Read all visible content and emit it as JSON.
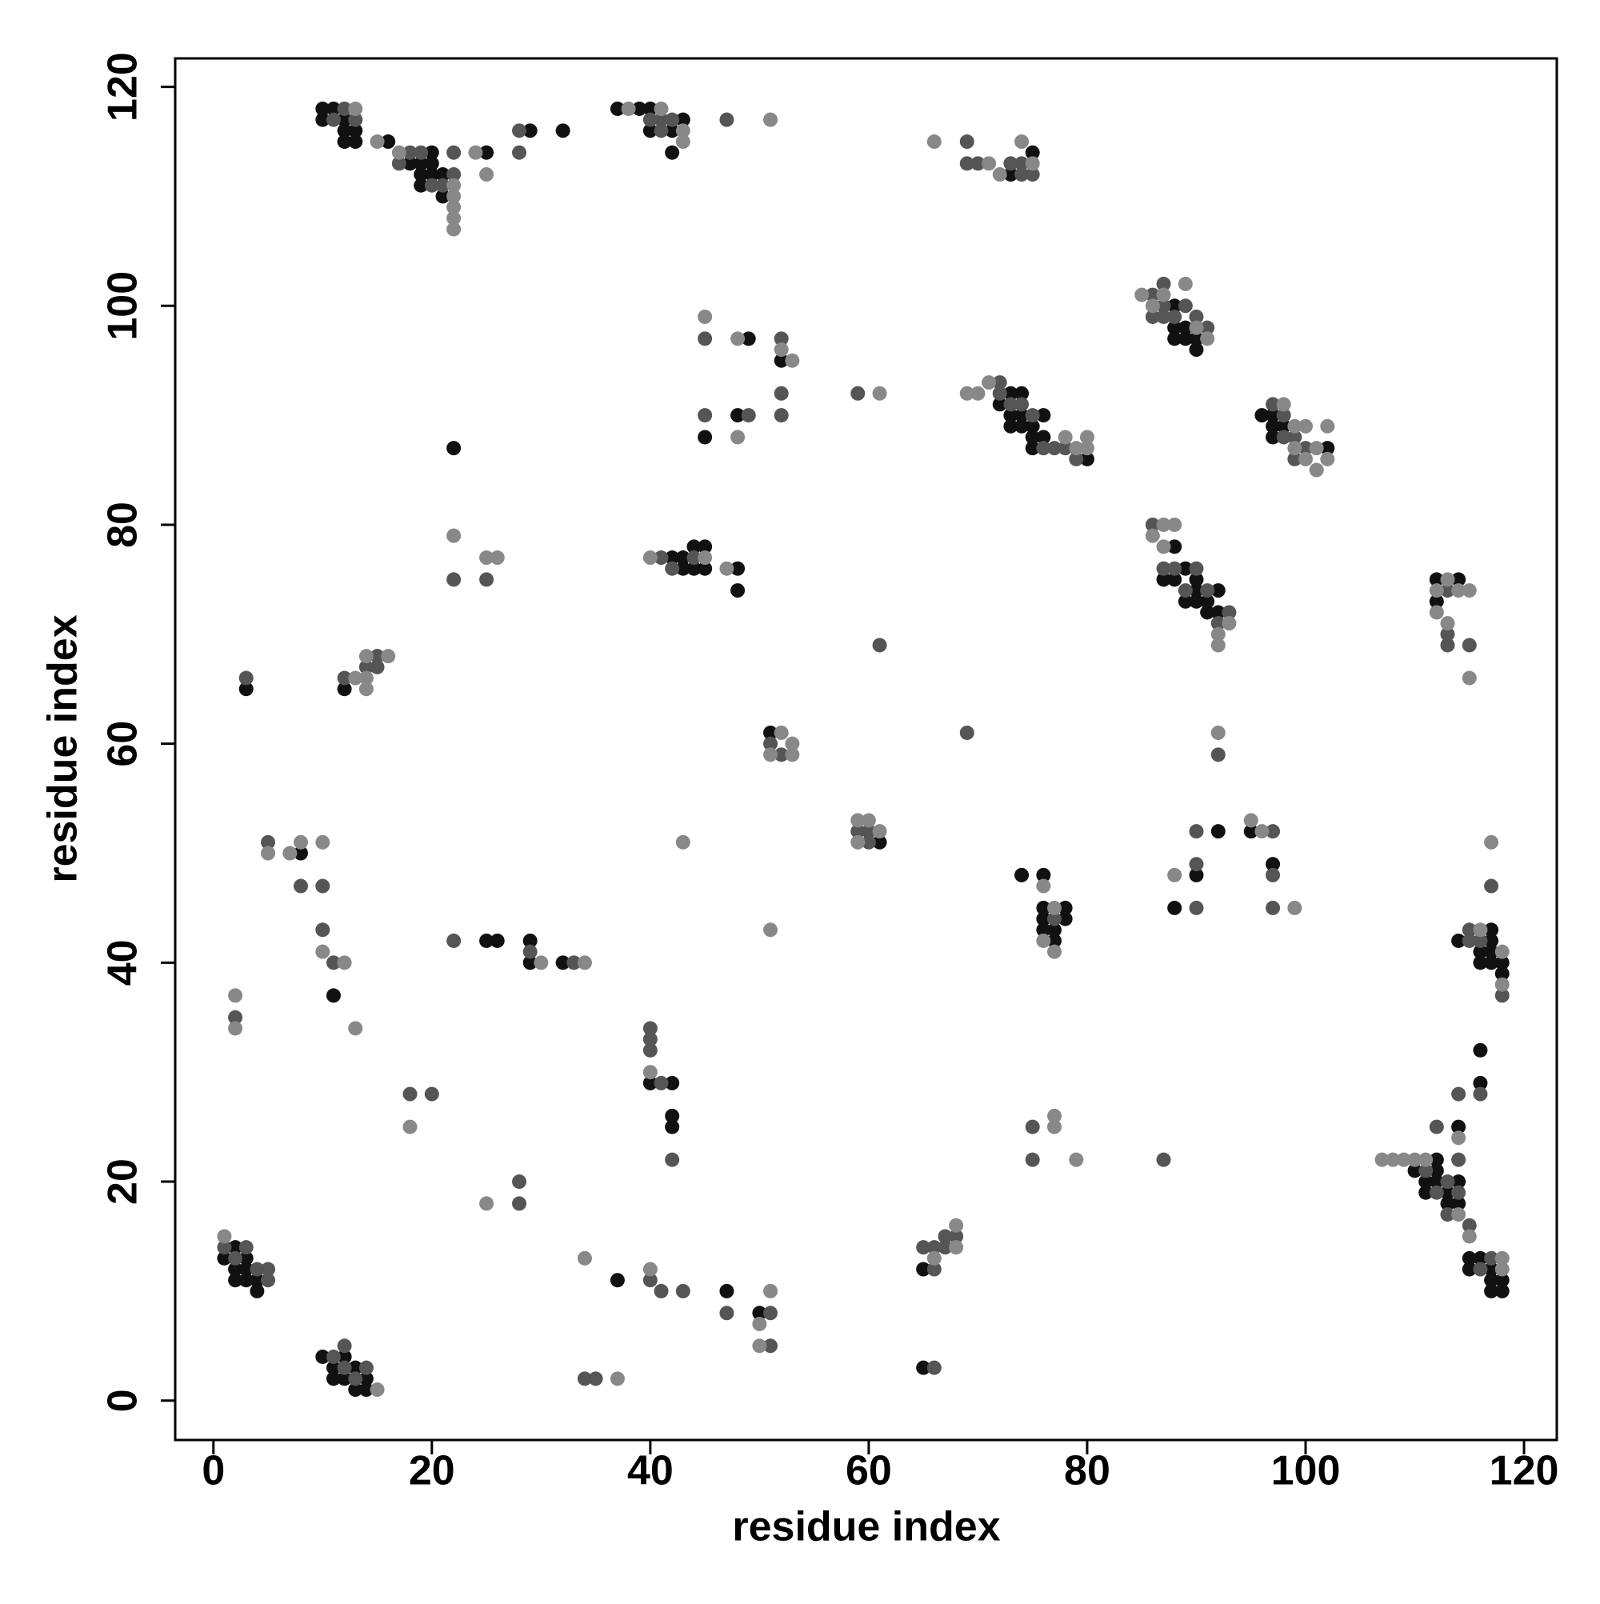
{
  "chart_data": {
    "type": "scatter",
    "xlabel": "residue index",
    "ylabel": "residue index",
    "xlim": [
      -3.5,
      123
    ],
    "ylim": [
      -3.6,
      122.6
    ],
    "xticks": [
      0,
      20,
      40,
      60,
      80,
      100,
      120
    ],
    "yticks": [
      0,
      20,
      40,
      60,
      80,
      100,
      120
    ],
    "series": [
      {
        "color": "#111111",
        "x": [
          1,
          2,
          2,
          2,
          3,
          3,
          3,
          4,
          4,
          10,
          11,
          11,
          12,
          12,
          13,
          13,
          14,
          14,
          37,
          47,
          50,
          65,
          65,
          3,
          8,
          11,
          12,
          25,
          26,
          29,
          29,
          32,
          22,
          40,
          42,
          42,
          42,
          42,
          43,
          43,
          44,
          44,
          45,
          45,
          48,
          48,
          49,
          45,
          48,
          52,
          51,
          61,
          10,
          10,
          11,
          12,
          12,
          12,
          13,
          13,
          16,
          18,
          19,
          19,
          19,
          20,
          20,
          20,
          21,
          21,
          25,
          29,
          32,
          37,
          39,
          40,
          40,
          42,
          42,
          43,
          73,
          75,
          72,
          73,
          73,
          73,
          74,
          74,
          74,
          75,
          75,
          75,
          76,
          76,
          80,
          88,
          88,
          88,
          89,
          89,
          90,
          90,
          96,
          97,
          97,
          97,
          98,
          102,
          87,
          88,
          88,
          89,
          89,
          90,
          90,
          90,
          91,
          91,
          92,
          92,
          112,
          112,
          114,
          74,
          76,
          76,
          76,
          76,
          77,
          77,
          78,
          78,
          88,
          90,
          92,
          95,
          97,
          114,
          116,
          116,
          117,
          117,
          117,
          117,
          118,
          118,
          116,
          116,
          114,
          110,
          111,
          111,
          112,
          112,
          112,
          113,
          113,
          114,
          114,
          115,
          115,
          116,
          117,
          117,
          117,
          118,
          118
        ],
        "values": [
          13,
          14,
          12,
          11,
          13,
          12,
          11,
          11,
          10,
          4,
          3,
          2,
          4,
          2,
          3,
          1,
          2,
          1,
          11,
          10,
          8,
          3,
          12,
          65,
          50,
          37,
          65,
          42,
          42,
          42,
          40,
          40,
          87,
          29,
          29,
          26,
          25,
          77,
          77,
          76,
          78,
          76,
          78,
          76,
          76,
          74,
          97,
          88,
          90,
          95,
          61,
          51,
          118,
          117,
          118,
          117,
          116,
          115,
          116,
          115,
          115,
          113,
          113,
          112,
          111,
          114,
          113,
          112,
          112,
          110,
          114,
          116,
          116,
          118,
          118,
          118,
          116,
          116,
          114,
          117,
          112,
          114,
          91,
          92,
          90,
          89,
          92,
          90,
          89,
          89,
          88,
          87,
          90,
          88,
          86,
          100,
          98,
          97,
          98,
          97,
          97,
          96,
          90,
          90,
          89,
          88,
          89,
          87,
          75,
          78,
          75,
          76,
          73,
          75,
          74,
          73,
          73,
          72,
          74,
          72,
          75,
          73,
          75,
          48,
          48,
          45,
          44,
          43,
          43,
          42,
          45,
          44,
          45,
          48,
          52,
          52,
          49,
          42,
          41,
          40,
          43,
          42,
          41,
          40,
          40,
          39,
          32,
          29,
          25,
          21,
          20,
          19,
          22,
          21,
          20,
          19,
          18,
          20,
          18,
          13,
          12,
          13,
          12,
          11,
          10,
          11,
          10
        ]
      },
      {
        "color": "#555555",
        "x": [
          1,
          2,
          3,
          4,
          5,
          5,
          11,
          12,
          12,
          13,
          14,
          34,
          35,
          40,
          41,
          43,
          47,
          51,
          51,
          66,
          66,
          65,
          66,
          67,
          67,
          68,
          18,
          20,
          28,
          28,
          2,
          3,
          5,
          8,
          10,
          10,
          11,
          12,
          14,
          15,
          15,
          22,
          29,
          33,
          22,
          25,
          40,
          40,
          40,
          41,
          42,
          41,
          42,
          44,
          45,
          45,
          49,
          52,
          52,
          52,
          51,
          52,
          59,
          60,
          60,
          61,
          59,
          69,
          11,
          12,
          13,
          17,
          18,
          19,
          20,
          21,
          22,
          22,
          28,
          28,
          40,
          41,
          41,
          42,
          47,
          69,
          69,
          70,
          73,
          74,
          74,
          75,
          72,
          72,
          73,
          74,
          75,
          76,
          77,
          78,
          79,
          86,
          86,
          87,
          87,
          87,
          88,
          89,
          90,
          91,
          97,
          98,
          98,
          99,
          99,
          100,
          86,
          87,
          88,
          89,
          90,
          91,
          92,
          93,
          92,
          113,
          113,
          113,
          115,
          77,
          75,
          75,
          87,
          90,
          90,
          90,
          97,
          97,
          97,
          117,
          115,
          115,
          116,
          118,
          116,
          114,
          114,
          112,
          111,
          112,
          113,
          113,
          114,
          115,
          116,
          117
        ],
        "values": [
          14,
          13,
          14,
          12,
          12,
          11,
          4,
          5,
          3,
          2,
          3,
          2,
          2,
          11,
          10,
          10,
          8,
          8,
          5,
          3,
          12,
          14,
          14,
          15,
          14,
          15,
          28,
          28,
          20,
          18,
          35,
          66,
          51,
          47,
          47,
          43,
          40,
          66,
          67,
          68,
          67,
          42,
          41,
          40,
          75,
          75,
          34,
          33,
          32,
          29,
          22,
          77,
          76,
          77,
          97,
          90,
          90,
          97,
          92,
          90,
          60,
          59,
          52,
          52,
          51,
          69,
          92,
          61,
          117,
          118,
          117,
          113,
          114,
          114,
          111,
          111,
          114,
          112,
          116,
          114,
          117,
          117,
          116,
          117,
          117,
          115,
          113,
          113,
          113,
          113,
          112,
          112,
          93,
          92,
          91,
          91,
          90,
          87,
          87,
          87,
          86,
          101,
          99,
          102,
          100,
          99,
          99,
          100,
          99,
          98,
          91,
          90,
          88,
          88,
          86,
          87,
          80,
          76,
          76,
          74,
          76,
          74,
          71,
          72,
          59,
          74,
          70,
          69,
          69,
          44,
          25,
          22,
          22,
          52,
          49,
          45,
          52,
          48,
          45,
          47,
          43,
          42,
          42,
          37,
          28,
          28,
          22,
          25,
          21,
          19,
          20,
          17,
          19,
          16,
          12,
          13
        ]
      },
      {
        "color": "#888888",
        "x": [
          1,
          15,
          37,
          34,
          40,
          50,
          50,
          51,
          66,
          68,
          68,
          18,
          25,
          2,
          2,
          5,
          7,
          8,
          10,
          10,
          12,
          13,
          13,
          14,
          14,
          14,
          16,
          30,
          34,
          22,
          25,
          26,
          40,
          43,
          40,
          45,
          47,
          45,
          48,
          48,
          52,
          53,
          51,
          52,
          53,
          53,
          51,
          59,
          59,
          60,
          61,
          61,
          13,
          15,
          17,
          22,
          22,
          22,
          22,
          22,
          24,
          25,
          38,
          41,
          43,
          43,
          51,
          66,
          71,
          72,
          74,
          75,
          69,
          70,
          71,
          78,
          79,
          80,
          80,
          85,
          86,
          87,
          89,
          90,
          91,
          98,
          99,
          99,
          100,
          100,
          101,
          101,
          102,
          102,
          86,
          87,
          87,
          88,
          92,
          92,
          93,
          92,
          112,
          112,
          113,
          113,
          114,
          115,
          115,
          76,
          76,
          77,
          77,
          77,
          77,
          79,
          88,
          95,
          96,
          99,
          117,
          116,
          118,
          118,
          114,
          107,
          108,
          109,
          110,
          111,
          114,
          115,
          118,
          118
        ],
        "values": [
          15,
          1,
          2,
          13,
          12,
          7,
          5,
          10,
          13,
          16,
          14,
          25,
          18,
          37,
          34,
          50,
          50,
          51,
          51,
          41,
          40,
          34,
          66,
          66,
          65,
          68,
          68,
          40,
          40,
          79,
          77,
          77,
          30,
          51,
          77,
          77,
          76,
          99,
          97,
          88,
          96,
          95,
          59,
          61,
          60,
          59,
          43,
          53,
          51,
          53,
          52,
          92,
          118,
          115,
          114,
          111,
          110,
          109,
          108,
          107,
          114,
          112,
          118,
          118,
          116,
          115,
          117,
          115,
          113,
          112,
          115,
          113,
          92,
          92,
          93,
          88,
          87,
          88,
          87,
          101,
          100,
          101,
          102,
          98,
          97,
          91,
          89,
          87,
          89,
          86,
          87,
          85,
          89,
          86,
          79,
          80,
          78,
          80,
          70,
          69,
          71,
          61,
          74,
          72,
          75,
          71,
          74,
          74,
          66,
          47,
          42,
          45,
          41,
          26,
          25,
          22,
          48,
          53,
          52,
          45,
          51,
          43,
          41,
          38,
          24,
          22,
          22,
          22,
          22,
          22,
          17,
          15,
          13,
          12
        ]
      }
    ]
  }
}
